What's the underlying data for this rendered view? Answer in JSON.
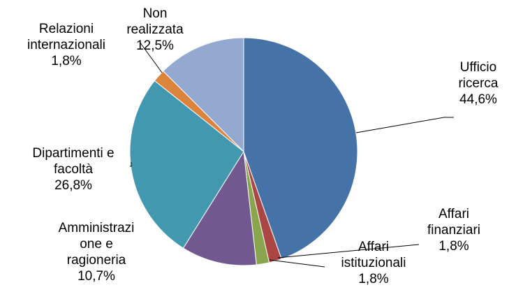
{
  "chart_data": {
    "type": "pie",
    "categories": [
      "Ufficio ricerca",
      "Affari finanziari",
      "Affari istituzionali",
      "Amministrazione e ragioneria",
      "Dipartimenti e facoltà",
      "Relazioni internazionali",
      "Non realizzata"
    ],
    "values": [
      44.6,
      1.8,
      1.8,
      10.7,
      26.8,
      1.8,
      12.5
    ],
    "value_labels": [
      "44,6%",
      "1,8%",
      "1,8%",
      "10,7%",
      "26,8%",
      "1,8%",
      "12,5%"
    ],
    "colors": [
      "#4572a7",
      "#aa4643",
      "#89a54e",
      "#71588f",
      "#4198af",
      "#db843d",
      "#93a9cf"
    ]
  }
}
